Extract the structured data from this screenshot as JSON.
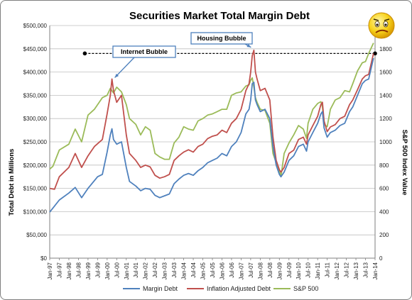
{
  "chart_data": {
    "type": "line",
    "title": "Securities Market Total Margin Debt",
    "ylabel": "Total Debt in Millions",
    "y2label": "S&P 500 Index Value",
    "ylim": [
      0,
      500000
    ],
    "y2lim": [
      0,
      2000
    ],
    "y_ticks": [
      "$0",
      "$50,000",
      "$100,000",
      "$150,000",
      "$200,000",
      "$250,000",
      "$300,000",
      "$350,000",
      "$400,000",
      "$450,000",
      "$500,000"
    ],
    "y_tick_values": [
      0,
      50000,
      100000,
      150000,
      200000,
      250000,
      300000,
      350000,
      400000,
      450000,
      500000
    ],
    "y2_ticks": [
      "0",
      "200",
      "400",
      "600",
      "800",
      "1000",
      "1200",
      "1400",
      "1600",
      "1800",
      "2000"
    ],
    "y2_tick_values": [
      0,
      200,
      400,
      600,
      800,
      1000,
      1200,
      1400,
      1600,
      1800,
      2000
    ],
    "x_ticks": [
      "Jan-97",
      "Jul-97",
      "Jan-98",
      "Jul-98",
      "Jan-99",
      "Jul-99",
      "Jan-00",
      "Jul-00",
      "Jan-01",
      "Jul-01",
      "Jan-02",
      "Jul-02",
      "Jan-03",
      "Jul-03",
      "Jan-04",
      "Jul-04",
      "Jan-05",
      "Jul-05",
      "Jan-06",
      "Jul-06",
      "Jan-07",
      "Jul-07",
      "Jan-08",
      "Jul-08",
      "Jan-09",
      "Jul-09",
      "Jan-10",
      "Jul-10",
      "Jan-11",
      "Jul-11",
      "Jan-12",
      "Jul-12",
      "Jan-13",
      "Jul-13",
      "Jan-14"
    ],
    "x_range_months": [
      0,
      204
    ],
    "grid": true,
    "legend_position": "bottom",
    "series": [
      {
        "name": "Margin Debt",
        "axis": "left",
        "color": "#4f81bd",
        "points": [
          [
            0,
            99000
          ],
          [
            6,
            125000
          ],
          [
            12,
            140000
          ],
          [
            16,
            152000
          ],
          [
            20,
            130000
          ],
          [
            24,
            150000
          ],
          [
            30,
            175000
          ],
          [
            33,
            180000
          ],
          [
            36,
            228000
          ],
          [
            38,
            265000
          ],
          [
            39,
            278000
          ],
          [
            40,
            255000
          ],
          [
            42,
            245000
          ],
          [
            45,
            250000
          ],
          [
            48,
            195000
          ],
          [
            50,
            165000
          ],
          [
            54,
            155000
          ],
          [
            57,
            145000
          ],
          [
            60,
            150000
          ],
          [
            63,
            148000
          ],
          [
            66,
            135000
          ],
          [
            69,
            130000
          ],
          [
            72,
            134000
          ],
          [
            75,
            138000
          ],
          [
            78,
            160000
          ],
          [
            81,
            170000
          ],
          [
            84,
            178000
          ],
          [
            87,
            182000
          ],
          [
            90,
            178000
          ],
          [
            93,
            188000
          ],
          [
            96,
            195000
          ],
          [
            99,
            205000
          ],
          [
            102,
            210000
          ],
          [
            105,
            215000
          ],
          [
            108,
            225000
          ],
          [
            111,
            220000
          ],
          [
            114,
            240000
          ],
          [
            117,
            250000
          ],
          [
            120,
            270000
          ],
          [
            123,
            310000
          ],
          [
            125,
            320000
          ],
          [
            126,
            340000
          ],
          [
            127,
            375000
          ],
          [
            128,
            378000
          ],
          [
            129,
            340000
          ],
          [
            130,
            330000
          ],
          [
            132,
            315000
          ],
          [
            135,
            320000
          ],
          [
            138,
            300000
          ],
          [
            140,
            240000
          ],
          [
            142,
            200000
          ],
          [
            144,
            180000
          ],
          [
            145,
            175000
          ],
          [
            147,
            185000
          ],
          [
            150,
            210000
          ],
          [
            153,
            220000
          ],
          [
            156,
            240000
          ],
          [
            159,
            245000
          ],
          [
            161,
            230000
          ],
          [
            162,
            250000
          ],
          [
            165,
            270000
          ],
          [
            168,
            290000
          ],
          [
            170,
            310000
          ],
          [
            171,
            315000
          ],
          [
            172,
            280000
          ],
          [
            174,
            260000
          ],
          [
            176,
            270000
          ],
          [
            179,
            275000
          ],
          [
            182,
            285000
          ],
          [
            185,
            290000
          ],
          [
            188,
            315000
          ],
          [
            190,
            325000
          ],
          [
            193,
            350000
          ],
          [
            196,
            375000
          ],
          [
            198,
            382000
          ],
          [
            200,
            385000
          ],
          [
            203,
            430000
          ]
        ]
      },
      {
        "name": "Inflation Adjusted Debt",
        "axis": "left",
        "color": "#c0504d",
        "points": [
          [
            0,
            150000
          ],
          [
            3,
            148000
          ],
          [
            6,
            175000
          ],
          [
            12,
            195000
          ],
          [
            16,
            225000
          ],
          [
            20,
            195000
          ],
          [
            24,
            220000
          ],
          [
            28,
            240000
          ],
          [
            33,
            255000
          ],
          [
            36,
            310000
          ],
          [
            38,
            350000
          ],
          [
            39,
            385000
          ],
          [
            40,
            360000
          ],
          [
            42,
            335000
          ],
          [
            45,
            350000
          ],
          [
            48,
            265000
          ],
          [
            50,
            225000
          ],
          [
            54,
            210000
          ],
          [
            57,
            195000
          ],
          [
            60,
            200000
          ],
          [
            63,
            196000
          ],
          [
            66,
            178000
          ],
          [
            69,
            172000
          ],
          [
            72,
            175000
          ],
          [
            75,
            180000
          ],
          [
            78,
            210000
          ],
          [
            81,
            220000
          ],
          [
            84,
            228000
          ],
          [
            87,
            233000
          ],
          [
            90,
            228000
          ],
          [
            93,
            240000
          ],
          [
            96,
            245000
          ],
          [
            99,
            257000
          ],
          [
            102,
            262000
          ],
          [
            105,
            265000
          ],
          [
            108,
            275000
          ],
          [
            111,
            270000
          ],
          [
            114,
            290000
          ],
          [
            117,
            300000
          ],
          [
            120,
            320000
          ],
          [
            123,
            360000
          ],
          [
            125,
            375000
          ],
          [
            126,
            400000
          ],
          [
            127,
            435000
          ],
          [
            128,
            447000
          ],
          [
            129,
            400000
          ],
          [
            130,
            385000
          ],
          [
            132,
            360000
          ],
          [
            135,
            365000
          ],
          [
            138,
            340000
          ],
          [
            140,
            260000
          ],
          [
            142,
            210000
          ],
          [
            144,
            190000
          ],
          [
            145,
            185000
          ],
          [
            147,
            195000
          ],
          [
            150,
            225000
          ],
          [
            153,
            232000
          ],
          [
            156,
            255000
          ],
          [
            159,
            260000
          ],
          [
            161,
            245000
          ],
          [
            162,
            265000
          ],
          [
            165,
            285000
          ],
          [
            168,
            305000
          ],
          [
            170,
            330000
          ],
          [
            171,
            335000
          ],
          [
            172,
            295000
          ],
          [
            174,
            272000
          ],
          [
            176,
            282000
          ],
          [
            179,
            287000
          ],
          [
            182,
            300000
          ],
          [
            185,
            305000
          ],
          [
            188,
            330000
          ],
          [
            190,
            340000
          ],
          [
            193,
            362000
          ],
          [
            196,
            385000
          ],
          [
            198,
            392000
          ],
          [
            200,
            395000
          ],
          [
            203,
            440000
          ]
        ]
      },
      {
        "name": "S&P 500",
        "axis": "right",
        "color": "#9bbb59",
        "points": [
          [
            0,
            766
          ],
          [
            2,
            790
          ],
          [
            6,
            930
          ],
          [
            12,
            980
          ],
          [
            16,
            1110
          ],
          [
            20,
            1000
          ],
          [
            24,
            1230
          ],
          [
            28,
            1280
          ],
          [
            33,
            1380
          ],
          [
            36,
            1400
          ],
          [
            38,
            1460
          ],
          [
            40,
            1420
          ],
          [
            42,
            1470
          ],
          [
            45,
            1430
          ],
          [
            48,
            1320
          ],
          [
            50,
            1200
          ],
          [
            54,
            1150
          ],
          [
            57,
            1060
          ],
          [
            60,
            1130
          ],
          [
            63,
            1100
          ],
          [
            66,
            900
          ],
          [
            69,
            870
          ],
          [
            72,
            850
          ],
          [
            75,
            850
          ],
          [
            78,
            990
          ],
          [
            81,
            1040
          ],
          [
            84,
            1130
          ],
          [
            87,
            1110
          ],
          [
            90,
            1100
          ],
          [
            93,
            1180
          ],
          [
            96,
            1200
          ],
          [
            99,
            1230
          ],
          [
            102,
            1240
          ],
          [
            105,
            1260
          ],
          [
            108,
            1280
          ],
          [
            111,
            1280
          ],
          [
            114,
            1400
          ],
          [
            117,
            1420
          ],
          [
            120,
            1430
          ],
          [
            123,
            1480
          ],
          [
            125,
            1490
          ],
          [
            126,
            1530
          ],
          [
            127,
            1550
          ],
          [
            128,
            1470
          ],
          [
            129,
            1380
          ],
          [
            130,
            1340
          ],
          [
            132,
            1280
          ],
          [
            135,
            1270
          ],
          [
            138,
            1160
          ],
          [
            140,
            900
          ],
          [
            142,
            820
          ],
          [
            144,
            750
          ],
          [
            145,
            700
          ],
          [
            147,
            900
          ],
          [
            150,
            990
          ],
          [
            153,
            1060
          ],
          [
            156,
            1140
          ],
          [
            159,
            1110
          ],
          [
            161,
            1030
          ],
          [
            162,
            1160
          ],
          [
            165,
            1280
          ],
          [
            168,
            1330
          ],
          [
            170,
            1345
          ],
          [
            171,
            1300
          ],
          [
            172,
            1150
          ],
          [
            174,
            1130
          ],
          [
            176,
            1280
          ],
          [
            179,
            1360
          ],
          [
            182,
            1380
          ],
          [
            185,
            1440
          ],
          [
            188,
            1430
          ],
          [
            190,
            1500
          ],
          [
            193,
            1610
          ],
          [
            196,
            1680
          ],
          [
            198,
            1690
          ],
          [
            200,
            1760
          ],
          [
            203,
            1850
          ]
        ]
      }
    ],
    "annotations": [
      {
        "text": "Internet Bubble",
        "target_x": 39,
        "target_y": 385000
      },
      {
        "text": "Housing Bubble",
        "target_x": 128,
        "target_y": 447000
      }
    ],
    "reference_line": {
      "y": 440000,
      "x_range": [
        22,
        204
      ]
    }
  },
  "icons": {
    "frown_face": "worried-face-icon"
  }
}
